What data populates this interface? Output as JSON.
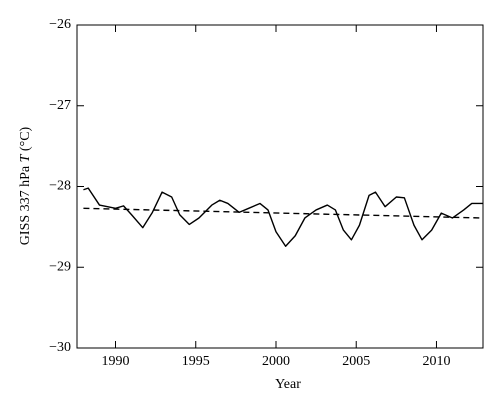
{
  "chart_data": {
    "type": "line",
    "ylabel": [
      "GISS 337 hPa ",
      "T",
      " (°C)"
    ],
    "xlabel": "Year",
    "series": [
      {
        "color": "#000000",
        "dash": false,
        "x": [
          1988.0,
          1988.3,
          1989,
          1990,
          1990.5,
          1991,
          1991.7,
          1992.3,
          1992.9,
          1993.5,
          1994,
          1994.6,
          1995.2,
          1996,
          1996.5,
          1997,
          1997.7,
          1998.3,
          1999,
          1999.5,
          2000,
          2000.6,
          2001.2,
          2001.8,
          2002.5,
          2003.2,
          2003.7,
          2004.2,
          2004.7,
          2005.2,
          2005.8,
          2006.2,
          2006.8,
          2007.5,
          2008,
          2008.6,
          2009.1,
          2009.7,
          2010.3,
          2011,
          2011.7,
          2012.2,
          2012.9
        ],
        "values": [
          -28.04,
          -28.02,
          -28.23,
          -28.27,
          -28.24,
          -28.35,
          -28.51,
          -28.32,
          -28.07,
          -28.13,
          -28.35,
          -28.47,
          -28.39,
          -28.23,
          -28.17,
          -28.21,
          -28.32,
          -28.27,
          -28.21,
          -28.29,
          -28.56,
          -28.74,
          -28.61,
          -28.39,
          -28.29,
          -28.23,
          -28.29,
          -28.54,
          -28.66,
          -28.48,
          -28.11,
          -28.07,
          -28.25,
          -28.13,
          -28.14,
          -28.48,
          -28.66,
          -28.54,
          -28.33,
          -28.39,
          -28.29,
          -28.21,
          -28.21
        ]
      },
      {
        "color": "#000000",
        "dash": true,
        "x": [
          1988.0,
          2012.9
        ],
        "values": [
          -28.27,
          -28.39
        ]
      }
    ],
    "xlim": [
      1987.6,
      2012.9
    ],
    "xticks": [
      1990,
      1995,
      2000,
      2005,
      2010
    ],
    "ylim": [
      -30,
      -26
    ],
    "yticks": [
      {
        "value": -30,
        "label": "−30"
      },
      {
        "value": -29,
        "label": "−29"
      },
      {
        "value": -28,
        "label": "−28"
      },
      {
        "value": -27,
        "label": "−27"
      },
      {
        "value": -26,
        "label": "−26"
      }
    ],
    "grid": false
  }
}
